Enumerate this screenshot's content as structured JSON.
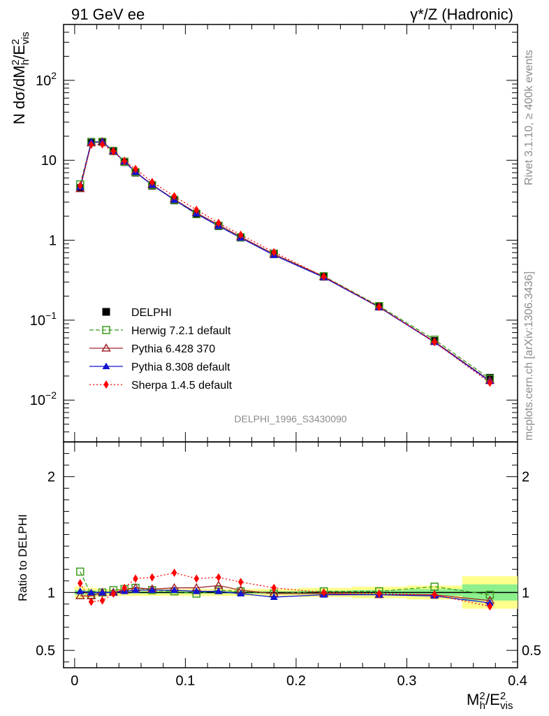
{
  "header": {
    "left": "91 GeV ee",
    "right": "γ*/Z (Hadronic)"
  },
  "side_labels": {
    "rivet": "Rivet 3.1.10, ≥ 400k events",
    "mcplots": "mcplots.cern.ch [arXiv:1306.3436]"
  },
  "analysis_id": "DELPHI_1996_S3430090",
  "legend": [
    {
      "name": "DELPHI",
      "color": "#000000",
      "marker": "filled-square"
    },
    {
      "name": "Herwig 7.2.1 default",
      "color": "#3c9a1e",
      "marker": "open-square"
    },
    {
      "name": "Pythia 6.428 370",
      "color": "#a0282d",
      "marker": "open-triangle"
    },
    {
      "name": "Pythia 8.308 default",
      "color": "#1414d2",
      "marker": "filled-triangle"
    },
    {
      "name": "Sherpa 1.4.5 default",
      "color": "#ff0000",
      "marker": "filled-diamond"
    }
  ],
  "chart_data": [
    {
      "type": "line",
      "title": "",
      "xlabel": "M_h^2/E_vis^2",
      "ylabel": "N dσ/dM_h^2/E_vis^2",
      "yscale": "log",
      "xlim": [
        -0.01,
        0.4
      ],
      "ylim": [
        0.003,
        500
      ],
      "x_ticks": [
        "0",
        "0.1",
        "0.2",
        "0.3",
        "0.4"
      ],
      "y_ticks": [
        "10^-2",
        "10^-1",
        "1",
        "10",
        "10^2"
      ],
      "x": [
        0.005,
        0.015,
        0.025,
        0.035,
        0.045,
        0.055,
        0.07,
        0.09,
        0.11,
        0.13,
        0.15,
        0.18,
        0.225,
        0.275,
        0.325,
        0.375
      ],
      "series": [
        {
          "name": "DELPHI",
          "values": [
            4.5,
            17.0,
            17.0,
            13.0,
            9.5,
            7.0,
            4.8,
            3.15,
            2.15,
            1.5,
            1.08,
            0.68,
            0.35,
            0.148,
            0.055,
            0.019
          ]
        },
        {
          "name": "Herwig 7.2.1 default",
          "values": [
            5.0,
            16.8,
            17.0,
            13.1,
            9.6,
            7.1,
            4.9,
            3.2,
            2.12,
            1.52,
            1.09,
            0.67,
            0.355,
            0.15,
            0.057,
            0.0185
          ]
        },
        {
          "name": "Pythia 6.428 370",
          "values": [
            4.4,
            16.5,
            17.0,
            13.0,
            9.7,
            7.2,
            4.95,
            3.25,
            2.2,
            1.56,
            1.1,
            0.67,
            0.35,
            0.146,
            0.054,
            0.0175
          ]
        },
        {
          "name": "Pythia 8.308 default",
          "values": [
            4.6,
            17.0,
            17.0,
            13.0,
            9.6,
            7.1,
            4.9,
            3.2,
            2.15,
            1.5,
            1.07,
            0.65,
            0.343,
            0.145,
            0.053,
            0.0172
          ]
        },
        {
          "name": "Sherpa 1.4.5 default",
          "values": [
            4.8,
            15.7,
            15.8,
            12.9,
            9.8,
            7.8,
            5.35,
            3.55,
            2.4,
            1.65,
            1.17,
            0.71,
            0.35,
            0.146,
            0.053,
            0.0165
          ]
        }
      ]
    },
    {
      "type": "line",
      "title": "",
      "xlabel": "M_h^2/E_vis^2",
      "ylabel": "Ratio to DELPHI",
      "xlim": [
        -0.01,
        0.4
      ],
      "ylim": [
        0.35,
        2.3
      ],
      "x_ticks": [
        "0",
        "0.1",
        "0.2",
        "0.3",
        "0.4"
      ],
      "y_ticks": [
        "0.5",
        "1",
        "2"
      ],
      "x": [
        0.005,
        0.015,
        0.025,
        0.035,
        0.045,
        0.055,
        0.07,
        0.09,
        0.11,
        0.13,
        0.15,
        0.18,
        0.225,
        0.275,
        0.325,
        0.375
      ],
      "bands": {
        "stat_halfwidth": [
          0.02,
          0.015,
          0.01,
          0.01,
          0.01,
          0.01,
          0.01,
          0.01,
          0.01,
          0.01,
          0.01,
          0.01,
          0.015,
          0.02,
          0.03,
          0.07
        ],
        "total_halfwidth": [
          0.05,
          0.04,
          0.03,
          0.03,
          0.03,
          0.03,
          0.03,
          0.03,
          0.03,
          0.03,
          0.03,
          0.03,
          0.04,
          0.05,
          0.06,
          0.14
        ]
      },
      "series": [
        {
          "name": "Herwig 7.2.1 default",
          "values": [
            1.18,
            0.98,
            1.0,
            1.02,
            1.03,
            1.04,
            1.02,
            1.01,
            0.99,
            1.02,
            1.01,
            0.99,
            1.01,
            1.01,
            1.05,
            0.98
          ]
        },
        {
          "name": "Pythia 6.428 370",
          "values": [
            0.97,
            0.97,
            1.0,
            1.0,
            1.02,
            1.04,
            1.03,
            1.04,
            1.04,
            1.06,
            1.02,
            0.99,
            0.99,
            0.98,
            0.98,
            0.93
          ]
        },
        {
          "name": "Pythia 8.308 default",
          "values": [
            1.01,
            1.0,
            1.0,
            1.0,
            1.01,
            1.02,
            1.02,
            1.02,
            1.01,
            1.01,
            0.99,
            0.96,
            0.98,
            0.98,
            0.97,
            0.91
          ]
        },
        {
          "name": "Sherpa 1.4.5 default",
          "values": [
            1.08,
            0.92,
            0.93,
            0.99,
            1.04,
            1.12,
            1.13,
            1.17,
            1.12,
            1.13,
            1.09,
            1.04,
            1.0,
            0.99,
            0.98,
            0.88
          ]
        }
      ]
    }
  ]
}
